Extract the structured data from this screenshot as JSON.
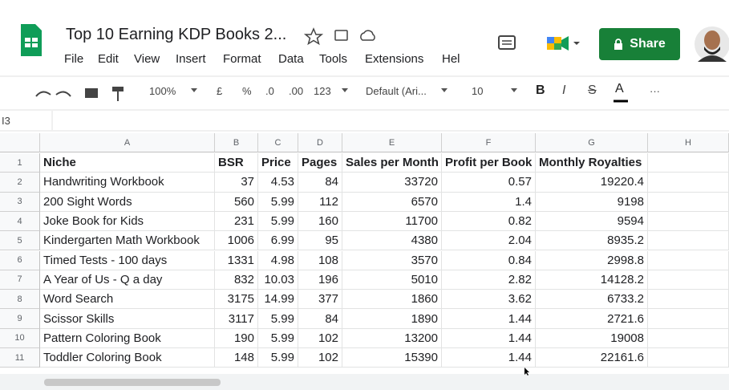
{
  "header": {
    "title": "Top 10 Earning KDP Books 2...",
    "share": "Share"
  },
  "menu": [
    "File",
    "Edit",
    "View",
    "Insert",
    "Format",
    "Data",
    "Tools",
    "Extensions",
    "Hel"
  ],
  "toolbar": {
    "zoom": "100%",
    "currency": "£",
    "percent": "%",
    "decrease_decimal": ".0",
    "increase_decimal": ".00",
    "number_format": "123",
    "font": "Default (Ari...",
    "font_size": "10",
    "bold": "B",
    "italic": "I",
    "strikethrough": "S",
    "text_color": "A",
    "more": "···"
  },
  "name_box": "I3",
  "columns": [
    "A",
    "B",
    "C",
    "D",
    "E",
    "F",
    "G",
    "H"
  ],
  "row_numbers": [
    1,
    2,
    3,
    4,
    5,
    6,
    7,
    8,
    9,
    10,
    11
  ],
  "table": {
    "header": [
      "Niche",
      "BSR",
      "Price",
      "Pages",
      "Sales per Month",
      "Profit per Book",
      "Monthly Royalties"
    ],
    "rows": [
      [
        "Handwriting Workbook",
        37,
        4.53,
        84,
        33720,
        0.57,
        19220.4
      ],
      [
        "200 Sight Words",
        560,
        5.99,
        112,
        6570,
        1.4,
        9198
      ],
      [
        "Joke Book for Kids",
        231,
        5.99,
        160,
        11700,
        0.82,
        9594
      ],
      [
        "Kindergarten Math Workbook",
        1006,
        6.99,
        95,
        4380,
        2.04,
        8935.2
      ],
      [
        "Timed Tests - 100 days",
        1331,
        4.98,
        108,
        3570,
        0.84,
        2998.8
      ],
      [
        "A Year of Us - Q a day",
        832,
        10.03,
        196,
        5010,
        2.82,
        14128.2
      ],
      [
        "Word Search",
        3175,
        14.99,
        377,
        1860,
        3.62,
        6733.2
      ],
      [
        "Scissor Skills",
        3117,
        5.99,
        84,
        1890,
        1.44,
        2721.6
      ],
      [
        "Pattern Coloring Book",
        190,
        5.99,
        102,
        13200,
        1.44,
        19008
      ],
      [
        "Toddler Coloring Book",
        148,
        5.99,
        102,
        15390,
        1.44,
        22161.6
      ]
    ]
  }
}
